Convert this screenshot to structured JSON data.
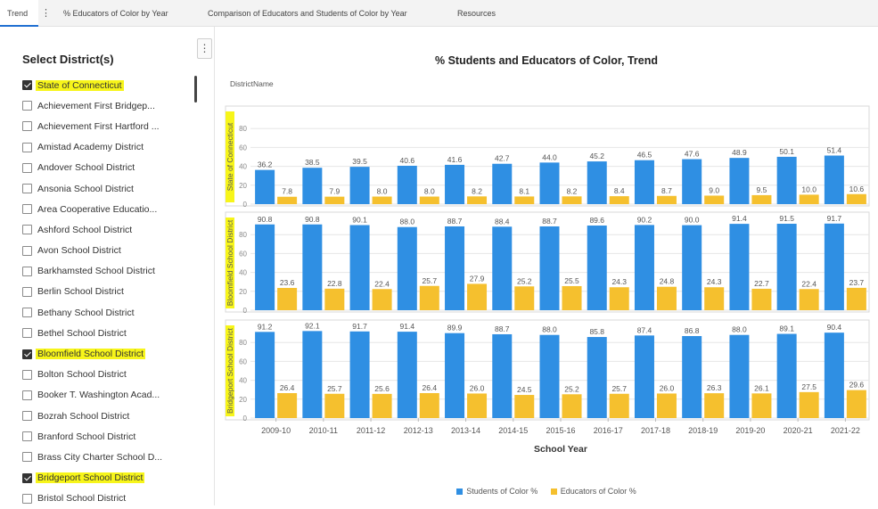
{
  "tabs": [
    {
      "label": "Trend",
      "active": true
    },
    {
      "label": "% Educators of Color by Year",
      "active": false
    },
    {
      "label": "Comparison of Educators and Students of Color by Year",
      "active": false
    },
    {
      "label": "Resources",
      "active": false
    }
  ],
  "tab_menu_icon": "vertical-dots-icon",
  "panel": {
    "title": "Select District(s)",
    "menu_icon": "vertical-dots-icon",
    "districts": [
      {
        "label": "State of Connecticut",
        "checked": true,
        "highlighted": true
      },
      {
        "label": "Achievement First Bridgep...",
        "checked": false
      },
      {
        "label": "Achievement First Hartford ...",
        "checked": false
      },
      {
        "label": "Amistad Academy District",
        "checked": false
      },
      {
        "label": "Andover School District",
        "checked": false
      },
      {
        "label": "Ansonia School District",
        "checked": false
      },
      {
        "label": "Area Cooperative Educatio...",
        "checked": false
      },
      {
        "label": "Ashford School District",
        "checked": false
      },
      {
        "label": "Avon School District",
        "checked": false
      },
      {
        "label": "Barkhamsted School District",
        "checked": false
      },
      {
        "label": "Berlin School District",
        "checked": false
      },
      {
        "label": "Bethany School District",
        "checked": false
      },
      {
        "label": "Bethel School District",
        "checked": false
      },
      {
        "label": "Bloomfield School District",
        "checked": true,
        "highlighted": true
      },
      {
        "label": "Bolton School District",
        "checked": false
      },
      {
        "label": "Booker T. Washington Acad...",
        "checked": false
      },
      {
        "label": "Bozrah School District",
        "checked": false
      },
      {
        "label": "Branford School District",
        "checked": false
      },
      {
        "label": "Brass City Charter School D...",
        "checked": false
      },
      {
        "label": "Bridgeport School District",
        "checked": true,
        "highlighted": true
      },
      {
        "label": "Bristol School District",
        "checked": false
      }
    ]
  },
  "chart": {
    "title": "% Students and Educators of Color, Trend",
    "facet_label": "DistrictName"
  },
  "colors": {
    "students": "#2f8fe3",
    "educators": "#f5c02e",
    "highlight": "#f7f51a",
    "grid": "#e6e6e6"
  },
  "chart_data": {
    "type": "bar",
    "title": "% Students and Educators of Color, Trend",
    "xlabel": "School Year",
    "ylabel": "",
    "categories": [
      "2009-10",
      "2010-11",
      "2011-12",
      "2012-13",
      "2013-14",
      "2014-15",
      "2015-16",
      "2016-17",
      "2017-18",
      "2018-19",
      "2019-20",
      "2020-21",
      "2021-22"
    ],
    "yticks": [
      0,
      20,
      40,
      60,
      80
    ],
    "ylim": [
      0,
      100
    ],
    "legend_position": "bottom",
    "series_names": [
      "Students of Color %",
      "Educators of Color %"
    ],
    "panels": [
      {
        "district": "State of Connecticut",
        "series": [
          {
            "name": "Students of Color %",
            "values": [
              36.2,
              38.5,
              39.5,
              40.6,
              41.6,
              42.7,
              44.0,
              45.2,
              46.5,
              47.6,
              48.9,
              50.1,
              51.4
            ]
          },
          {
            "name": "Educators of Color %",
            "values": [
              7.8,
              7.9,
              8.0,
              8.0,
              8.2,
              8.1,
              8.2,
              8.4,
              8.7,
              9.0,
              9.5,
              10.0,
              10.6
            ]
          }
        ]
      },
      {
        "district": "Bloomfield School District",
        "series": [
          {
            "name": "Students of Color %",
            "values": [
              90.8,
              90.8,
              90.1,
              88.0,
              88.7,
              88.4,
              88.7,
              89.6,
              90.2,
              90.0,
              91.4,
              91.5,
              91.7
            ]
          },
          {
            "name": "Educators of Color %",
            "values": [
              23.6,
              22.8,
              22.4,
              25.7,
              27.9,
              25.2,
              25.5,
              24.3,
              24.8,
              24.3,
              22.7,
              22.4,
              23.7
            ]
          }
        ]
      },
      {
        "district": "Bridgeport School District",
        "series": [
          {
            "name": "Students of Color %",
            "values": [
              91.2,
              92.1,
              91.7,
              91.4,
              89.9,
              88.7,
              88.0,
              85.8,
              87.4,
              86.8,
              88.0,
              89.1,
              90.4
            ]
          },
          {
            "name": "Educators of Color %",
            "values": [
              26.4,
              25.7,
              25.6,
              26.4,
              26.0,
              24.5,
              25.2,
              25.7,
              26.0,
              26.3,
              26.1,
              27.5,
              29.6
            ]
          }
        ]
      }
    ]
  }
}
